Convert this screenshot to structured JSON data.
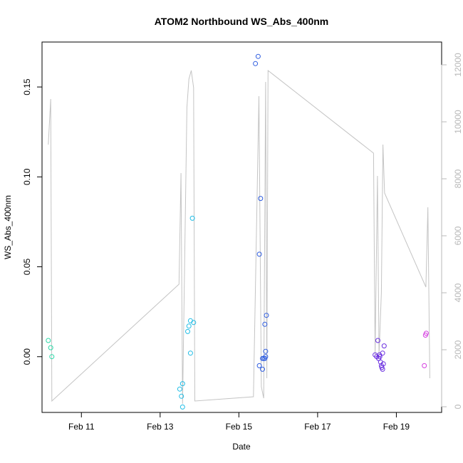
{
  "chart_data": {
    "type": "scatter",
    "title": "ATOM2 Northbound WS_Abs_400nm",
    "xlabel": "Date",
    "ylabel": "WS_Abs_400nm",
    "x_unit": "days since Feb 10 00:00",
    "xlim": [
      10.0,
      20.15
    ],
    "ylim": [
      -0.031,
      0.175
    ],
    "y2lim": [
      -200,
      12800
    ],
    "x_ticks": [
      {
        "value": 11,
        "label": "Feb 11"
      },
      {
        "value": 13,
        "label": "Feb 13"
      },
      {
        "value": 15,
        "label": "Feb 15"
      },
      {
        "value": 17,
        "label": "Feb 17"
      },
      {
        "value": 19,
        "label": "Feb 19"
      }
    ],
    "y_ticks": [
      {
        "value": 0.0,
        "label": "0.00"
      },
      {
        "value": 0.05,
        "label": "0.05"
      },
      {
        "value": 0.1,
        "label": "0.10"
      },
      {
        "value": 0.15,
        "label": "0.15"
      }
    ],
    "y2_ticks": [
      {
        "value": 0,
        "label": "0"
      },
      {
        "value": 2000,
        "label": "2000"
      },
      {
        "value": 4000,
        "label": "4000"
      },
      {
        "value": 6000,
        "label": "6000"
      },
      {
        "value": 8000,
        "label": "8000"
      },
      {
        "value": 10000,
        "label": "10000"
      },
      {
        "value": 12000,
        "label": "12000"
      }
    ],
    "points": [
      {
        "x": 10.16,
        "y": 0.009,
        "color": "#2bd9a8"
      },
      {
        "x": 10.22,
        "y": 0.005,
        "color": "#2bd9a8"
      },
      {
        "x": 10.25,
        "y": 0.0,
        "color": "#2bd9a8"
      },
      {
        "x": 13.5,
        "y": -0.018,
        "color": "#1fbde6"
      },
      {
        "x": 13.54,
        "y": -0.022,
        "color": "#1fbde6"
      },
      {
        "x": 13.57,
        "y": -0.015,
        "color": "#1fbde6"
      },
      {
        "x": 13.57,
        "y": -0.028,
        "color": "#1fbde6"
      },
      {
        "x": 13.7,
        "y": 0.014,
        "color": "#1fbde6"
      },
      {
        "x": 13.73,
        "y": 0.017,
        "color": "#1fbde6"
      },
      {
        "x": 13.77,
        "y": 0.02,
        "color": "#1fbde6"
      },
      {
        "x": 13.77,
        "y": 0.002,
        "color": "#1fbde6"
      },
      {
        "x": 13.85,
        "y": 0.019,
        "color": "#1fbde6"
      },
      {
        "x": 13.82,
        "y": 0.077,
        "color": "#1fbde6"
      },
      {
        "x": 15.42,
        "y": 0.163,
        "color": "#2f5de0"
      },
      {
        "x": 15.49,
        "y": 0.167,
        "color": "#2f5de0"
      },
      {
        "x": 15.52,
        "y": 0.057,
        "color": "#2f5de0"
      },
      {
        "x": 15.55,
        "y": 0.088,
        "color": "#2f5de0"
      },
      {
        "x": 15.52,
        "y": -0.005,
        "color": "#2f5de0"
      },
      {
        "x": 15.6,
        "y": -0.007,
        "color": "#2f5de0"
      },
      {
        "x": 15.6,
        "y": -0.001,
        "color": "#2f5de0"
      },
      {
        "x": 15.63,
        "y": -0.001,
        "color": "#2f5de0"
      },
      {
        "x": 15.66,
        "y": 0.018,
        "color": "#2f5de0"
      },
      {
        "x": 15.68,
        "y": 0.003,
        "color": "#2f5de0"
      },
      {
        "x": 15.7,
        "y": 0.023,
        "color": "#2f5de0"
      },
      {
        "x": 15.66,
        "y": -0.001,
        "color": "#2f5de0"
      },
      {
        "x": 15.68,
        "y": 0.0,
        "color": "#2f5de0"
      },
      {
        "x": 18.46,
        "y": 0.001,
        "color": "#6a2ee0"
      },
      {
        "x": 18.5,
        "y": 0.0,
        "color": "#6a2ee0"
      },
      {
        "x": 18.53,
        "y": 0.009,
        "color": "#6a2ee0"
      },
      {
        "x": 18.55,
        "y": -0.001,
        "color": "#6a2ee0"
      },
      {
        "x": 18.57,
        "y": 0.001,
        "color": "#6a2ee0"
      },
      {
        "x": 18.58,
        "y": 0.0,
        "color": "#6a2ee0"
      },
      {
        "x": 18.6,
        "y": -0.003,
        "color": "#6a2ee0"
      },
      {
        "x": 18.62,
        "y": -0.005,
        "color": "#6a2ee0"
      },
      {
        "x": 18.63,
        "y": -0.006,
        "color": "#6a2ee0"
      },
      {
        "x": 18.65,
        "y": -0.007,
        "color": "#6a2ee0"
      },
      {
        "x": 18.65,
        "y": 0.002,
        "color": "#6a2ee0"
      },
      {
        "x": 18.67,
        "y": -0.004,
        "color": "#6a2ee0"
      },
      {
        "x": 18.69,
        "y": 0.006,
        "color": "#6a2ee0"
      },
      {
        "x": 18.55,
        "y": -0.001,
        "color": "#6a2ee0"
      },
      {
        "x": 19.71,
        "y": -0.005,
        "color": "#d43ee0"
      },
      {
        "x": 19.74,
        "y": 0.012,
        "color": "#d43ee0"
      },
      {
        "x": 19.76,
        "y": 0.013,
        "color": "#d43ee0"
      }
    ],
    "secondary_line": {
      "color": "#c4c4c4",
      "axis": "right",
      "points": [
        [
          10.16,
          9200
        ],
        [
          10.22,
          10800
        ],
        [
          10.25,
          200
        ],
        [
          13.48,
          4300
        ],
        [
          13.53,
          8200
        ],
        [
          13.57,
          100
        ],
        [
          13.68,
          10500
        ],
        [
          13.73,
          11500
        ],
        [
          13.79,
          11800
        ],
        [
          13.85,
          11200
        ],
        [
          13.88,
          200
        ],
        [
          15.37,
          350
        ],
        [
          15.51,
          10900
        ],
        [
          15.57,
          700
        ],
        [
          15.63,
          300
        ],
        [
          15.68,
          11400
        ],
        [
          15.71,
          1000
        ],
        [
          15.74,
          11800
        ],
        [
          18.42,
          8900
        ],
        [
          18.46,
          1800
        ],
        [
          18.52,
          8100
        ],
        [
          18.56,
          1800
        ],
        [
          18.62,
          4000
        ],
        [
          18.66,
          9200
        ],
        [
          18.7,
          7500
        ],
        [
          19.75,
          4200
        ],
        [
          19.8,
          7000
        ],
        [
          19.85,
          1000
        ]
      ]
    }
  }
}
